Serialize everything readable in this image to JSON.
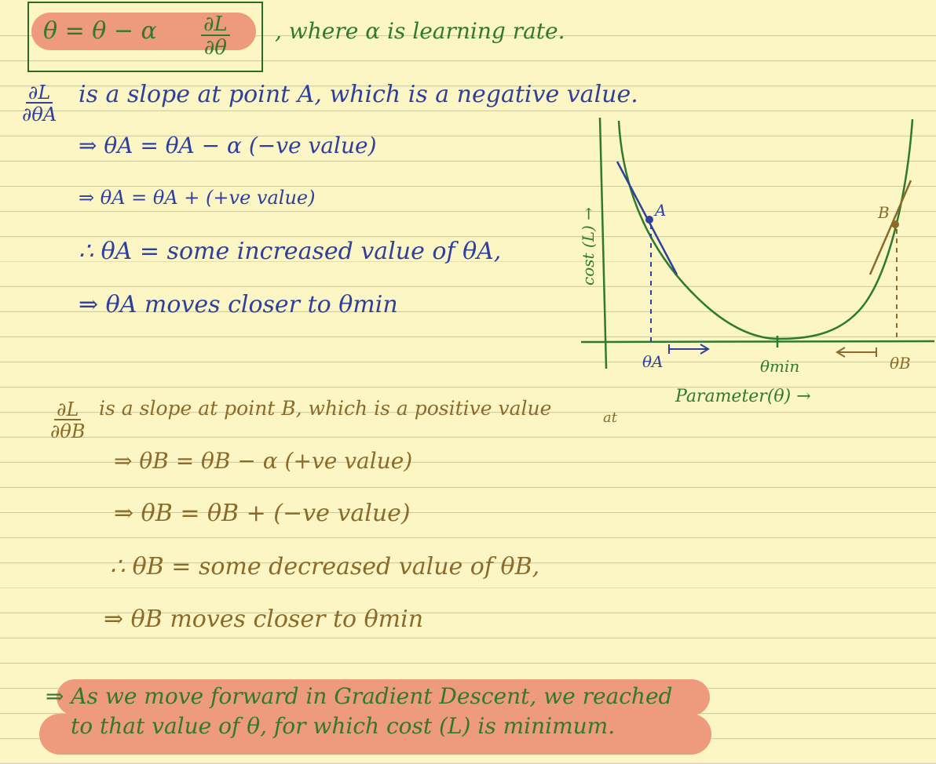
{
  "formula": {
    "lhs": "θ = θ − α",
    "partial_num": "∂L",
    "partial_den": "∂θ",
    "note": ", where α is learning rate."
  },
  "section_a": {
    "frac_num": "∂L",
    "frac_den": "∂θA",
    "statement": "is a slope at point A, which is a negative value.",
    "lines": [
      "⇒ θA = θA − α (−ve value)",
      "⇒ θA = θA + (+ve value)",
      "∴ θA = some increased value of θA,",
      "⇒ θA moves closer to θmin"
    ]
  },
  "graph": {
    "y_label": "cost (L) →",
    "x_label": "Parameter(θ) →",
    "point_a": "A",
    "point_b": "B",
    "tick_a": "θA",
    "tick_min": "θmin",
    "tick_b": "θB",
    "colors": {
      "axis": "#2f7a2f",
      "curve": "#2f7a2f",
      "tangent_a": "#2e3f9e",
      "tangent_b": "#8b6a2a"
    }
  },
  "section_b": {
    "frac_num": "∂L",
    "frac_den": "∂θB",
    "statement": "is a slope at point B, which is a positive value",
    "annotation": "at",
    "lines": [
      "⇒ θB = θB − α (+ve value)",
      "⇒ θB = θB + (−ve value)",
      "∴ θB = some decreased value of θB,",
      "⇒ θB moves closer to θmin"
    ]
  },
  "conclusion": {
    "line1": "⇒ As we move forward in Gradient Descent, we reached",
    "line2": "to that value of θ, for which cost (L) is minimum."
  },
  "colors": {
    "paper": "#fbf6c4",
    "rule": "#c9c7b4",
    "highlight": "#ee9a7c",
    "green": "#2f7a2f",
    "blue": "#2e3f9e",
    "brown": "#8b6a2a"
  }
}
